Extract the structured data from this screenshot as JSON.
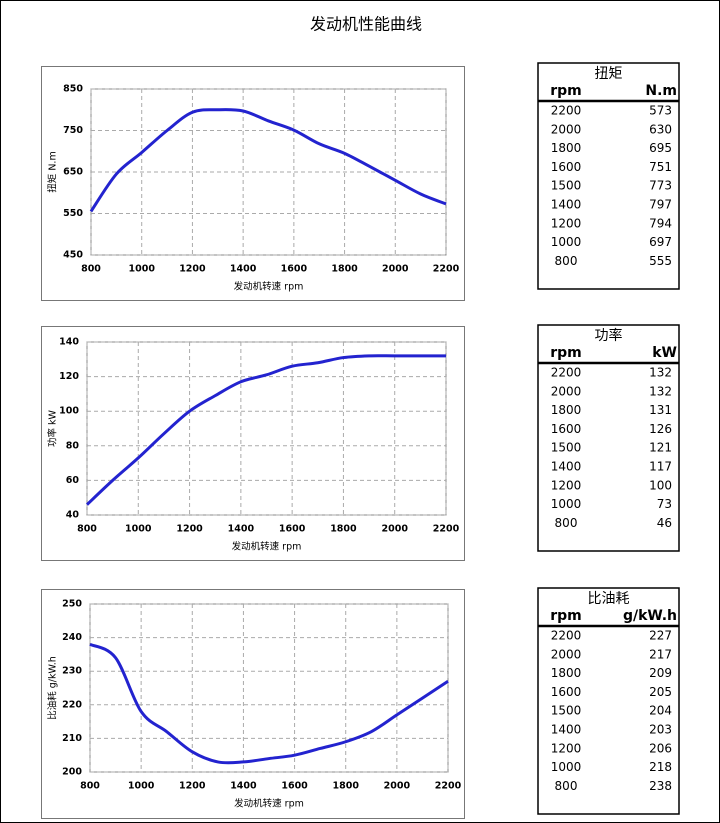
{
  "title": "发动机性能曲线",
  "chart_data": [
    {
      "type": "line",
      "x_label": "发动机转速  rpm",
      "y_label": "扭矩 N.m",
      "x": [
        800,
        900,
        1000,
        1100,
        1200,
        1300,
        1400,
        1500,
        1600,
        1700,
        1800,
        1900,
        2000,
        2100,
        2200
      ],
      "series": [
        {
          "color": "#2323cf",
          "values": [
            555,
            645,
            697,
            750,
            794,
            800,
            797,
            773,
            751,
            718,
            695,
            663,
            630,
            597,
            573
          ]
        }
      ],
      "xlim": [
        800,
        2200
      ],
      "ylim": [
        450,
        850
      ],
      "xticks": [
        800,
        1000,
        1200,
        1400,
        1600,
        1800,
        2000,
        2200
      ],
      "yticks": [
        450,
        550,
        650,
        750,
        850
      ],
      "grid": true
    },
    {
      "type": "line",
      "x_label": "发动机转速 rpm",
      "y_label": "功率  kW",
      "x": [
        800,
        900,
        1000,
        1100,
        1200,
        1300,
        1400,
        1500,
        1600,
        1700,
        1800,
        1900,
        2000,
        2100,
        2200
      ],
      "series": [
        {
          "color": "#2323cf",
          "values": [
            46,
            60,
            73,
            87,
            100,
            109,
            117,
            121,
            126,
            128,
            131,
            132,
            132,
            132,
            132
          ]
        }
      ],
      "xlim": [
        800,
        2200
      ],
      "ylim": [
        40,
        140
      ],
      "xticks": [
        800,
        1000,
        1200,
        1400,
        1600,
        1800,
        2000,
        2200
      ],
      "yticks": [
        40,
        60,
        80,
        100,
        120,
        140
      ],
      "grid": true
    },
    {
      "type": "line",
      "x_label": "发动机转速 rpm",
      "y_label": "比油耗  g/kW.h",
      "x": [
        800,
        900,
        1000,
        1100,
        1200,
        1300,
        1400,
        1500,
        1600,
        1700,
        1800,
        1900,
        2000,
        2100,
        2200
      ],
      "series": [
        {
          "color": "#2323cf",
          "values": [
            238,
            234,
            218,
            212,
            206,
            203,
            203,
            204,
            205,
            207,
            209,
            212,
            217,
            222,
            227
          ]
        }
      ],
      "xlim": [
        800,
        2200
      ],
      "ylim": [
        200,
        250
      ],
      "xticks": [
        800,
        1000,
        1200,
        1400,
        1600,
        1800,
        2000,
        2200
      ],
      "yticks": [
        200,
        210,
        220,
        230,
        240,
        250
      ],
      "grid": true
    }
  ],
  "tables": [
    {
      "title": "扭矩",
      "columns": [
        "rpm",
        "N.m"
      ],
      "rows": [
        [
          2200,
          573
        ],
        [
          2000,
          630
        ],
        [
          1800,
          695
        ],
        [
          1600,
          751
        ],
        [
          1500,
          773
        ],
        [
          1400,
          797
        ],
        [
          1200,
          794
        ],
        [
          1000,
          697
        ],
        [
          800,
          555
        ]
      ]
    },
    {
      "title": "功率",
      "columns": [
        "rpm",
        "kW"
      ],
      "rows": [
        [
          2200,
          132
        ],
        [
          2000,
          132
        ],
        [
          1800,
          131
        ],
        [
          1600,
          126
        ],
        [
          1500,
          121
        ],
        [
          1400,
          117
        ],
        [
          1200,
          100
        ],
        [
          1000,
          73
        ],
        [
          800,
          46
        ]
      ]
    },
    {
      "title": "比油耗",
      "columns": [
        "rpm",
        "g/kW.h"
      ],
      "rows": [
        [
          2200,
          227
        ],
        [
          2000,
          217
        ],
        [
          1800,
          209
        ],
        [
          1600,
          205
        ],
        [
          1500,
          204
        ],
        [
          1400,
          203
        ],
        [
          1200,
          206
        ],
        [
          1000,
          218
        ],
        [
          800,
          238
        ]
      ]
    }
  ]
}
